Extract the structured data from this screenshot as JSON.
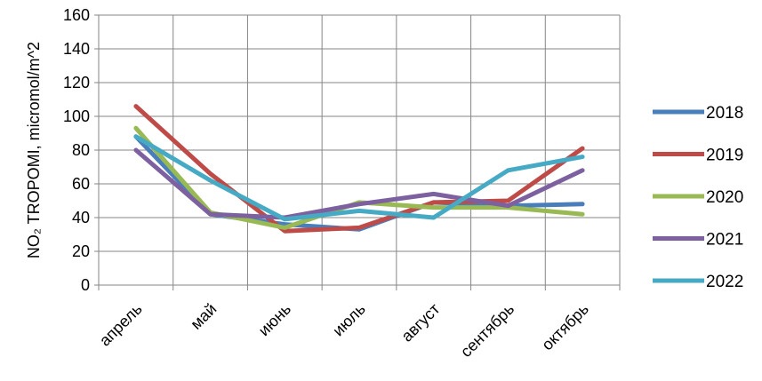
{
  "chart_data": {
    "type": "line",
    "title": "",
    "xlabel": "",
    "ylabel": "NO₂ TROPOMI, micromol/m^2",
    "ylim": [
      0,
      160
    ],
    "yticks": [
      0,
      20,
      40,
      60,
      80,
      100,
      120,
      140,
      160
    ],
    "grid": true,
    "legend": "right",
    "categories": [
      "апрель",
      "май",
      "июнь",
      "июль",
      "август",
      "сентябрь",
      "октябрь"
    ],
    "series": [
      {
        "name": "2018",
        "color": "#4a7ebb",
        "values": [
          88,
          42,
          36,
          33,
          49,
          47,
          48
        ]
      },
      {
        "name": "2019",
        "color": "#be4b48",
        "values": [
          106,
          66,
          32,
          34,
          49,
          50,
          81
        ]
      },
      {
        "name": "2020",
        "color": "#98b954",
        "values": [
          93,
          43,
          34,
          49,
          46,
          46,
          42
        ]
      },
      {
        "name": "2021",
        "color": "#7d60a0",
        "values": [
          80,
          42,
          40,
          48,
          54,
          47,
          68
        ]
      },
      {
        "name": "2022",
        "color": "#46aac5",
        "values": [
          88,
          62,
          39,
          44,
          40,
          68,
          76
        ]
      }
    ]
  }
}
